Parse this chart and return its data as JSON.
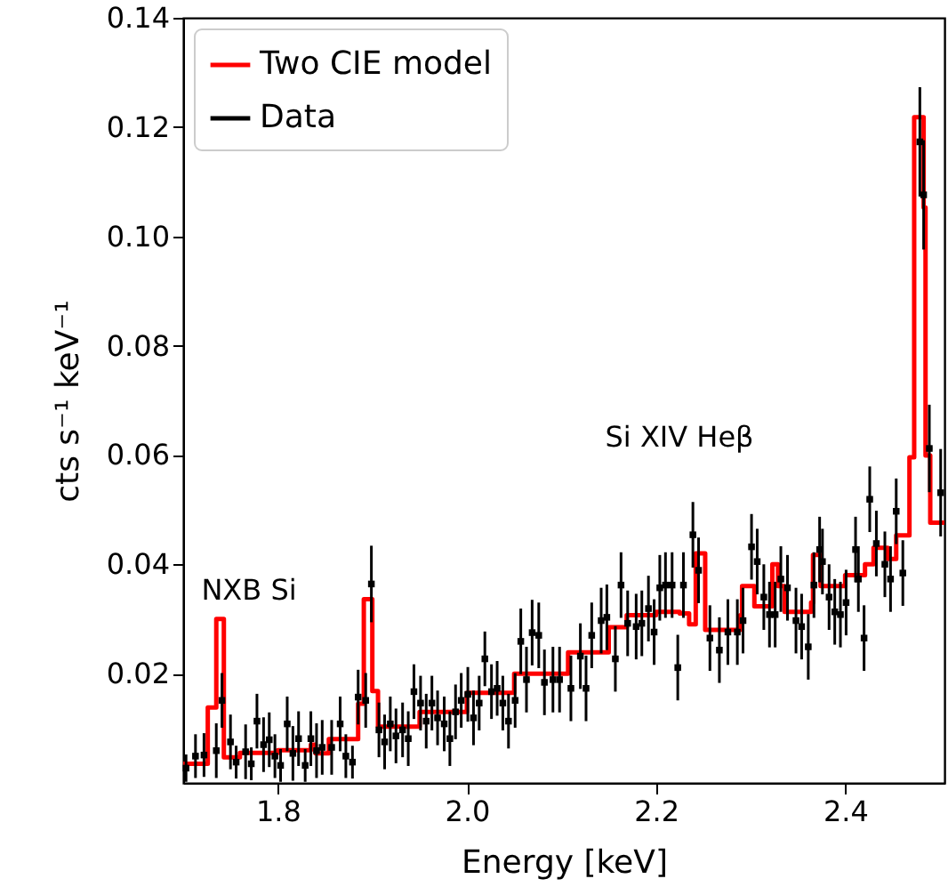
{
  "chart_data": {
    "type": "step",
    "xlabel": "Energy [keV]",
    "ylabel": "cts s⁻¹ keV⁻¹",
    "xlim": [
      1.7,
      2.505
    ],
    "ylim": [
      0.0,
      0.14
    ],
    "xticks": [
      1.8,
      {
        "value": 2.0,
        "label": "2.0"
      },
      2.2,
      2.4
    ],
    "yticks": [
      0.02,
      0.04,
      0.06,
      0.08,
      {
        "value": 0.1,
        "label": "0.10"
      },
      0.12,
      0.14
    ],
    "grid": false,
    "legend": "top left",
    "annotations": [
      "NXB Si",
      "Si XIV Heβ"
    ],
    "series": [
      {
        "name": "Two CIE model",
        "color": "#ff0000",
        "line_style": "solid",
        "marker": "none",
        "x": [
          1.7,
          1.726,
          1.735,
          1.743,
          1.76,
          1.8,
          1.835,
          1.84,
          1.854,
          1.885,
          1.891,
          1.9,
          1.906,
          1.95,
          2.0,
          2.05,
          2.107,
          2.15,
          2.169,
          2.2,
          2.225,
          2.235,
          2.242,
          2.252,
          2.289,
          2.291,
          2.304,
          2.323,
          2.329,
          2.336,
          2.364,
          2.366,
          2.374,
          2.4,
          2.421,
          2.43,
          2.445,
          2.454,
          2.468,
          2.473,
          2.483,
          2.485,
          2.49,
          2.505
        ],
        "values": [
          0.0035,
          0.0138,
          0.03,
          0.0047,
          0.0055,
          0.006,
          0.007,
          0.0054,
          0.008,
          0.0145,
          0.0336,
          0.0168,
          0.0103,
          0.013,
          0.0165,
          0.02,
          0.0239,
          0.0285,
          0.0307,
          0.0313,
          0.031,
          0.029,
          0.042,
          0.028,
          0.0307,
          0.036,
          0.0323,
          0.04,
          0.036,
          0.0313,
          0.033,
          0.0417,
          0.036,
          0.038,
          0.04,
          0.043,
          0.041,
          0.0453,
          0.0596,
          0.1218,
          0.1053,
          0.0599,
          0.0476,
          0.0476
        ]
      },
      {
        "name": "Data",
        "type": "scatter",
        "color": "#000000",
        "marker": "square",
        "x": [
          1.703,
          1.713,
          1.722,
          1.735,
          1.741,
          1.75,
          1.756,
          1.766,
          1.772,
          1.778,
          1.785,
          1.791,
          1.797,
          1.803,
          1.81,
          1.816,
          1.822,
          1.829,
          1.835,
          1.841,
          1.847,
          1.857,
          1.866,
          1.872,
          1.879,
          1.885,
          1.893,
          1.899,
          1.907,
          1.913,
          1.919,
          1.925,
          1.932,
          1.938,
          1.944,
          1.951,
          1.957,
          1.963,
          1.969,
          1.976,
          1.982,
          1.988,
          1.994,
          2.001,
          2.007,
          2.013,
          2.019,
          2.026,
          2.032,
          2.038,
          2.044,
          2.051,
          2.057,
          2.063,
          2.069,
          2.076,
          2.082,
          2.091,
          2.098,
          2.11,
          2.12,
          2.126,
          2.132,
          2.142,
          2.148,
          2.157,
          2.163,
          2.17,
          2.179,
          2.185,
          2.192,
          2.198,
          2.204,
          2.21,
          2.217,
          2.223,
          2.229,
          2.239,
          2.245,
          2.257,
          2.267,
          2.276,
          2.286,
          2.292,
          2.301,
          2.307,
          2.314,
          2.32,
          2.326,
          2.332,
          2.339,
          2.348,
          2.354,
          2.361,
          2.367,
          2.373,
          2.376,
          2.383,
          2.389,
          2.395,
          2.401,
          2.411,
          2.414,
          2.42,
          2.426,
          2.433,
          2.442,
          2.448,
          2.454,
          2.461,
          2.479,
          2.483,
          2.489,
          2.501
        ],
        "values": [
          0.0027,
          0.0049,
          0.0051,
          0.0059,
          0.0151,
          0.0075,
          0.0038,
          0.0057,
          0.0035,
          0.0113,
          0.007,
          0.0079,
          0.0049,
          0.0032,
          0.0108,
          0.0054,
          0.0081,
          0.0032,
          0.0081,
          0.0059,
          0.0065,
          0.0065,
          0.0108,
          0.0049,
          0.0038,
          0.0157,
          0.0151,
          0.0364,
          0.0097,
          0.0075,
          0.0108,
          0.0086,
          0.0097,
          0.0081,
          0.0167,
          0.0146,
          0.0113,
          0.0146,
          0.0119,
          0.0108,
          0.0081,
          0.013,
          0.0151,
          0.0162,
          0.0119,
          0.0146,
          0.0227,
          0.0167,
          0.0173,
          0.0146,
          0.0113,
          0.0151,
          0.0259,
          0.0189,
          0.0275,
          0.027,
          0.0184,
          0.0189,
          0.0189,
          0.0173,
          0.0232,
          0.0173,
          0.027,
          0.0297,
          0.0303,
          0.0227,
          0.0362,
          0.0292,
          0.0286,
          0.0292,
          0.0319,
          0.0276,
          0.0357,
          0.0362,
          0.0362,
          0.0211,
          0.0362,
          0.0454,
          0.0389,
          0.0265,
          0.0243,
          0.0276,
          0.0276,
          0.0297,
          0.0432,
          0.0405,
          0.034,
          0.0308,
          0.0308,
          0.0373,
          0.0357,
          0.0297,
          0.0286,
          0.0249,
          0.0362,
          0.0427,
          0.0405,
          0.034,
          0.0313,
          0.0308,
          0.033,
          0.0427,
          0.0373,
          0.0265,
          0.0519,
          0.0438,
          0.04,
          0.0373,
          0.0497,
          0.0384,
          0.1173,
          0.1076,
          0.0612,
          0.0531
        ],
        "errors": [
          0.0025,
          0.004,
          0.004,
          0.005,
          0.005,
          0.005,
          0.003,
          0.005,
          0.003,
          0.005,
          0.005,
          0.005,
          0.004,
          0.003,
          0.005,
          0.005,
          0.005,
          0.003,
          0.005,
          0.005,
          0.005,
          0.005,
          0.005,
          0.004,
          0.003,
          0.005,
          0.005,
          0.007,
          0.005,
          0.005,
          0.005,
          0.005,
          0.005,
          0.005,
          0.005,
          0.005,
          0.005,
          0.005,
          0.005,
          0.005,
          0.005,
          0.005,
          0.005,
          0.005,
          0.005,
          0.005,
          0.005,
          0.005,
          0.005,
          0.005,
          0.005,
          0.005,
          0.006,
          0.006,
          0.006,
          0.006,
          0.006,
          0.006,
          0.006,
          0.006,
          0.006,
          0.006,
          0.006,
          0.006,
          0.006,
          0.006,
          0.006,
          0.006,
          0.006,
          0.006,
          0.006,
          0.006,
          0.006,
          0.006,
          0.006,
          0.006,
          0.006,
          0.006,
          0.006,
          0.006,
          0.006,
          0.006,
          0.006,
          0.006,
          0.006,
          0.006,
          0.006,
          0.006,
          0.006,
          0.006,
          0.006,
          0.006,
          0.006,
          0.006,
          0.006,
          0.006,
          0.006,
          0.006,
          0.006,
          0.006,
          0.006,
          0.006,
          0.006,
          0.006,
          0.006,
          0.006,
          0.006,
          0.006,
          0.006,
          0.006,
          0.01,
          0.01,
          0.008,
          0.008
        ],
        "xerrors": [
          null,
          0.003,
          0.003,
          0.003,
          0.003,
          0.003,
          0.003,
          0.003,
          0.003,
          0.003,
          0.003,
          0.003,
          0.003,
          0.003,
          0.003,
          0.003,
          0.003,
          0.003,
          0.003,
          0.003,
          0.003,
          0.003,
          0.003,
          0.003,
          0.003,
          0.003,
          0.003,
          0.003,
          0.003,
          0.003,
          0.003,
          0.003,
          0.003,
          0.003,
          0.003,
          0.003,
          0.003,
          0.003,
          0.003,
          0.003,
          0.003,
          0.003,
          0.003,
          0.003,
          0.003,
          0.003,
          0.003,
          0.003,
          0.003,
          0.003,
          0.003,
          0.003,
          0.003,
          0.003,
          0.003,
          0.003,
          0.003,
          0.003,
          0.003,
          0.003,
          0.003,
          0.003,
          0.003,
          0.003,
          0.003,
          0.003,
          0.003,
          0.003,
          0.003,
          0.003,
          0.003,
          0.003,
          0.003,
          0.003,
          0.003,
          0.003,
          0.003,
          0.003,
          0.003,
          0.003,
          0.003,
          0.003,
          0.003,
          0.003,
          0.003,
          0.003,
          0.003,
          0.003,
          0.003,
          0.003,
          0.003,
          0.003,
          0.003,
          0.003,
          0.003,
          0.003,
          0.003,
          0.003,
          0.003,
          0.003,
          0.003,
          0.003,
          0.003,
          0.003,
          0.003,
          0.003,
          0.003,
          0.003,
          0.003,
          0.003,
          0.003,
          0.003,
          0.003,
          0.003
        ]
      }
    ]
  }
}
